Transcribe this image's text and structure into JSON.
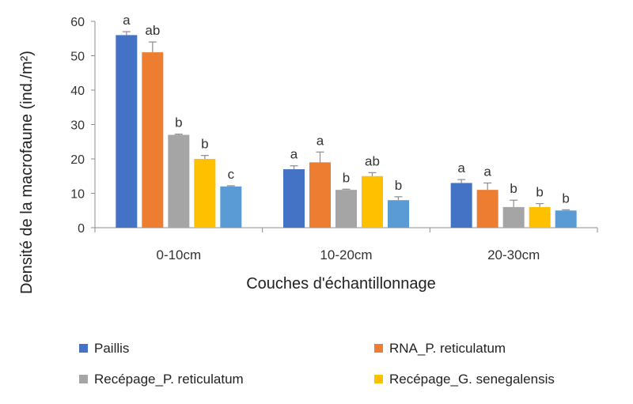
{
  "chart_data": {
    "type": "bar",
    "title": "",
    "xlabel": "Couches d'échantillonnage",
    "ylabel": "Densité de la macrofaune (ind./m²)",
    "ylim": [
      0,
      60
    ],
    "yticks": [
      0,
      10,
      20,
      30,
      40,
      50,
      60
    ],
    "categories": [
      "0-10cm",
      "10-20cm",
      "20-30cm"
    ],
    "series": [
      {
        "name": "Paillis",
        "color": "#4472C4",
        "values": [
          56,
          17,
          13
        ],
        "errors": [
          1,
          1,
          1
        ],
        "letters": [
          "a",
          "a",
          "a"
        ]
      },
      {
        "name": "RNA_P. reticulatum",
        "color": "#ED7D31",
        "values": [
          51,
          19,
          11
        ],
        "errors": [
          3,
          3,
          2
        ],
        "letters": [
          "ab",
          "a",
          "a"
        ]
      },
      {
        "name": "Recépage_P. reticulatum",
        "color": "#A5A5A5",
        "values": [
          27,
          11,
          6
        ],
        "errors": [
          0.2,
          0.2,
          2
        ],
        "letters": [
          "b",
          "b",
          "b"
        ]
      },
      {
        "name": "Recépage_G. senegalensis",
        "color": "#FFC000",
        "values": [
          20,
          15,
          6
        ],
        "errors": [
          1,
          1,
          1
        ],
        "letters": [
          "b",
          "ab",
          "b"
        ]
      },
      {
        "name": "",
        "color": "#5B9BD5",
        "values": [
          12,
          8,
          5
        ],
        "errors": [
          0.2,
          1,
          0.2
        ],
        "letters": [
          "c",
          "b",
          "b"
        ]
      }
    ],
    "grid": false,
    "legend": "bottom"
  }
}
